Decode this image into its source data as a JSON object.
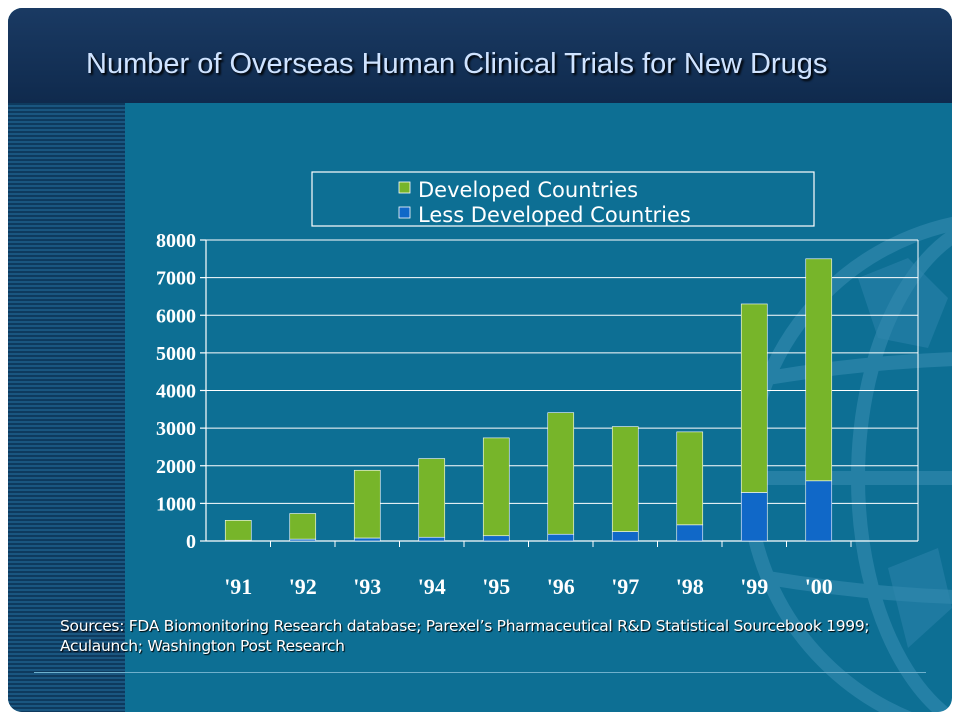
{
  "slide": {
    "title": "Number of Overseas Human Clinical Trials for New Drugs",
    "sources": "Sources: FDA Biomonitoring Research database; Parexel’s Pharmaceutical R&D Statistical Sourcebook 1999; Aculaunch; Washington Post Research"
  },
  "colors": {
    "developed": "#77b52a",
    "less_developed": "#1068c8",
    "background": "#0d6f94"
  },
  "chart_data": {
    "type": "bar",
    "stacked": true,
    "categories": [
      "'91",
      "'92",
      "'93",
      "'94",
      "'95",
      "'96",
      "'97",
      "'98",
      "'99",
      "'00"
    ],
    "series": [
      {
        "name": "Less Developed Countries",
        "values": [
          20,
          50,
          80,
          100,
          140,
          180,
          250,
          430,
          1290,
          1600
        ]
      },
      {
        "name": "Developed Countries",
        "values": [
          530,
          680,
          1800,
          2090,
          2600,
          3230,
          2790,
          2470,
          5010,
          5900
        ]
      }
    ],
    "ylim": [
      0,
      8000
    ],
    "yticks": [
      "0",
      "1000",
      "2000",
      "3000",
      "4000",
      "5000",
      "6000",
      "7000",
      "8000"
    ],
    "legend": {
      "position": "top",
      "items": [
        "Developed Countries",
        "Less Developed Countries"
      ]
    },
    "grid": true
  }
}
